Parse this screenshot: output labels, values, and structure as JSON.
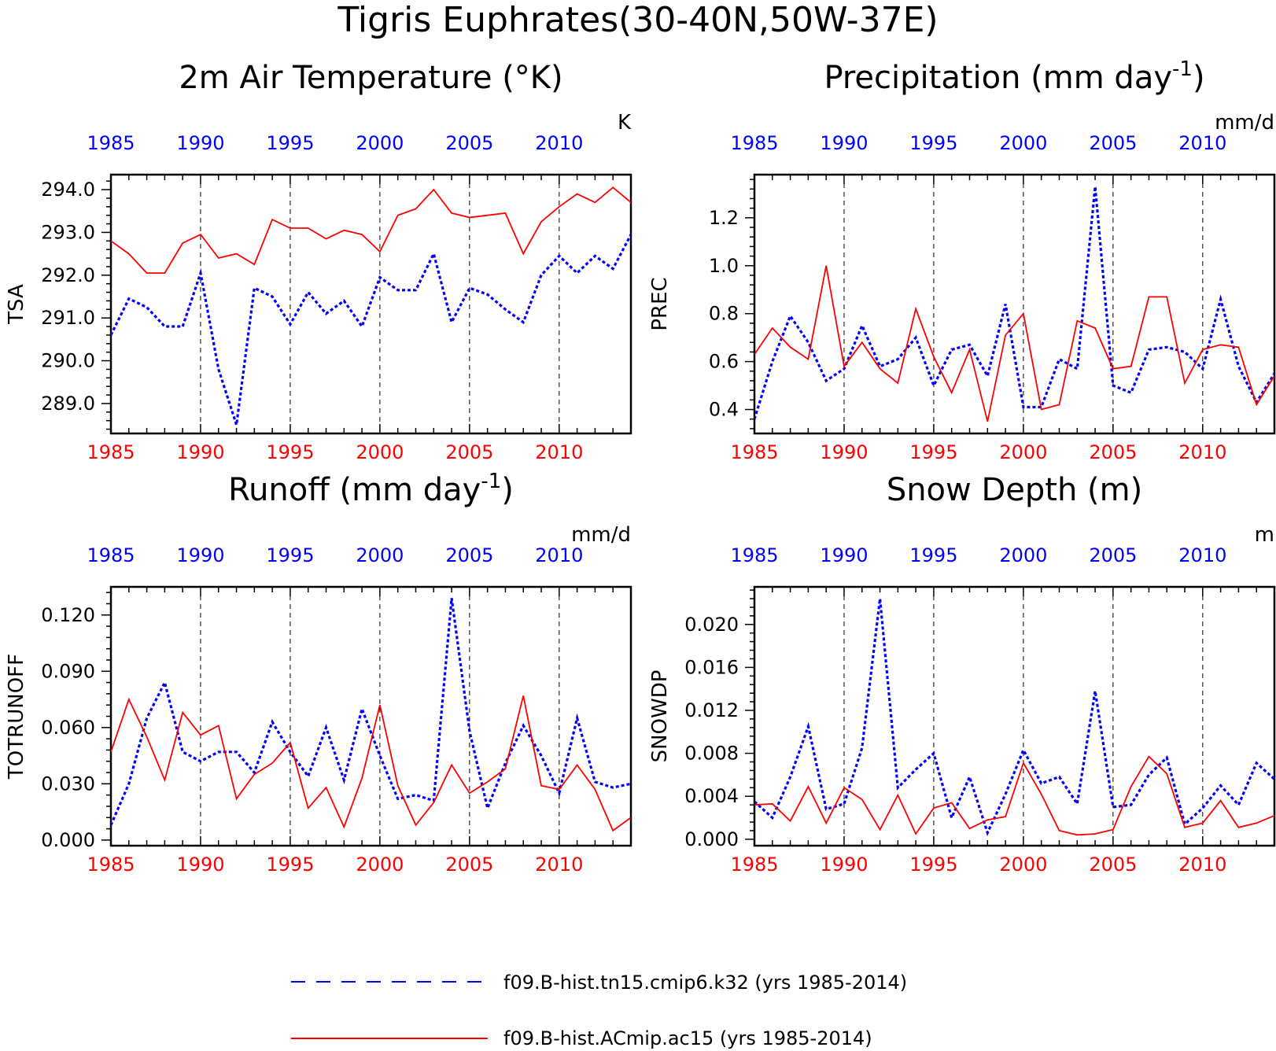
{
  "figure": {
    "title": "Tigris Euphrates(30-40N,50W-37E)",
    "colors": {
      "run1": "#0000ff",
      "run2": "#ff0000",
      "axis": "#000000"
    },
    "legend": [
      {
        "label": "f09.B-hist.tn15.cmip6.k32 (yrs 1985-2014)",
        "color": "#0000ff",
        "style": "dashed"
      },
      {
        "label": "f09.B-hist.ACmip.ac15 (yrs 1985-2014)",
        "color": "#ff0000",
        "style": "solid"
      }
    ]
  },
  "chart_data": [
    {
      "type": "line",
      "title": "2m Air Temperature (°K)",
      "units": "K",
      "ylabel": "TSA",
      "x": [
        1985,
        1986,
        1987,
        1988,
        1989,
        1990,
        1991,
        1992,
        1993,
        1994,
        1995,
        1996,
        1997,
        1998,
        1999,
        2000,
        2001,
        2002,
        2003,
        2004,
        2005,
        2006,
        2007,
        2008,
        2009,
        2010,
        2011,
        2012,
        2013,
        2014
      ],
      "xlim": [
        1985,
        2014
      ],
      "ylim": [
        288.3,
        294.35
      ],
      "yticks": [
        289.0,
        290.0,
        291.0,
        292.0,
        293.0,
        294.0
      ],
      "ytick_labels": [
        "289.0",
        "290.0",
        "291.0",
        "292.0",
        "293.0",
        "294.0"
      ],
      "xticks": [
        1985,
        1990,
        1995,
        2000,
        2005,
        2010
      ],
      "series": [
        {
          "name": "f09.B-hist.tn15.cmip6.k32 (yrs 1985-2014)",
          "style": "dashed",
          "color": "#0000ff",
          "values": [
            290.6,
            291.45,
            291.25,
            290.8,
            290.8,
            292.05,
            289.8,
            288.5,
            291.7,
            291.5,
            290.85,
            291.6,
            291.1,
            291.4,
            290.8,
            291.95,
            291.65,
            291.65,
            292.5,
            290.9,
            291.7,
            291.55,
            291.2,
            290.9,
            292.0,
            292.45,
            292.05,
            292.45,
            292.15,
            292.95
          ]
        },
        {
          "name": "f09.B-hist.ACmip.ac15 (yrs 1985-2014)",
          "style": "solid",
          "color": "#ff0000",
          "values": [
            292.8,
            292.5,
            292.05,
            292.05,
            292.75,
            292.95,
            292.4,
            292.5,
            292.25,
            293.3,
            293.1,
            293.1,
            292.85,
            293.05,
            292.95,
            292.55,
            293.4,
            293.55,
            294.0,
            293.45,
            293.35,
            293.4,
            293.45,
            292.5,
            293.25,
            293.6,
            293.9,
            293.7,
            294.05,
            293.7
          ]
        }
      ]
    },
    {
      "type": "line",
      "title": "Precipitation (mm day",
      "title_sup": "-1",
      "title_end": ")",
      "units": "mm/d",
      "ylabel": "PREC",
      "x": [
        1985,
        1986,
        1987,
        1988,
        1989,
        1990,
        1991,
        1992,
        1993,
        1994,
        1995,
        1996,
        1997,
        1998,
        1999,
        2000,
        2001,
        2002,
        2003,
        2004,
        2005,
        2006,
        2007,
        2008,
        2009,
        2010,
        2011,
        2012,
        2013,
        2014
      ],
      "xlim": [
        1985,
        2014
      ],
      "ylim": [
        0.3,
        1.38
      ],
      "yticks": [
        0.4,
        0.6,
        0.8,
        1.0,
        1.2
      ],
      "ytick_labels": [
        "0.4",
        "0.6",
        "0.8",
        "1.0",
        "1.2"
      ],
      "xticks": [
        1985,
        1990,
        1995,
        2000,
        2005,
        2010
      ],
      "series": [
        {
          "name": "f09.B-hist.tn15.cmip6.k32 (yrs 1985-2014)",
          "style": "dashed",
          "color": "#0000ff",
          "values": [
            0.36,
            0.6,
            0.79,
            0.68,
            0.52,
            0.57,
            0.75,
            0.58,
            0.61,
            0.7,
            0.5,
            0.65,
            0.67,
            0.54,
            0.84,
            0.41,
            0.41,
            0.61,
            0.57,
            1.33,
            0.5,
            0.47,
            0.65,
            0.66,
            0.64,
            0.57,
            0.86,
            0.58,
            0.43,
            0.55
          ]
        },
        {
          "name": "f09.B-hist.ACmip.ac15 (yrs 1985-2014)",
          "style": "solid",
          "color": "#ff0000",
          "values": [
            0.63,
            0.74,
            0.66,
            0.61,
            1.0,
            0.58,
            0.68,
            0.57,
            0.51,
            0.82,
            0.62,
            0.47,
            0.65,
            0.35,
            0.71,
            0.8,
            0.4,
            0.42,
            0.77,
            0.74,
            0.57,
            0.58,
            0.87,
            0.87,
            0.51,
            0.65,
            0.67,
            0.66,
            0.42,
            0.54
          ]
        }
      ]
    },
    {
      "type": "line",
      "title": "Runoff (mm day",
      "title_sup": "-1",
      "title_end": ")",
      "units": "mm/d",
      "ylabel": "TOTRUNOFF",
      "x": [
        1985,
        1986,
        1987,
        1988,
        1989,
        1990,
        1991,
        1992,
        1993,
        1994,
        1995,
        1996,
        1997,
        1998,
        1999,
        2000,
        2001,
        2002,
        2003,
        2004,
        2005,
        2006,
        2007,
        2008,
        2009,
        2010,
        2011,
        2012,
        2013,
        2014
      ],
      "xlim": [
        1985,
        2014
      ],
      "ylim": [
        -0.003,
        0.135
      ],
      "yticks": [
        0.0,
        0.03,
        0.06,
        0.09,
        0.12
      ],
      "ytick_labels": [
        "0.000",
        "0.030",
        "0.060",
        "0.090",
        "0.120"
      ],
      "xticks": [
        1985,
        1990,
        1995,
        2000,
        2005,
        2010
      ],
      "series": [
        {
          "name": "f09.B-hist.tn15.cmip6.k32 (yrs 1985-2014)",
          "style": "dashed",
          "color": "#0000ff",
          "values": [
            0.008,
            0.03,
            0.065,
            0.084,
            0.047,
            0.042,
            0.047,
            0.047,
            0.036,
            0.063,
            0.047,
            0.034,
            0.06,
            0.032,
            0.07,
            0.045,
            0.022,
            0.024,
            0.021,
            0.129,
            0.058,
            0.017,
            0.041,
            0.061,
            0.045,
            0.025,
            0.065,
            0.031,
            0.028,
            0.03
          ]
        },
        {
          "name": "f09.B-hist.ACmip.ac15 (yrs 1985-2014)",
          "style": "solid",
          "color": "#ff0000",
          "values": [
            0.047,
            0.075,
            0.055,
            0.032,
            0.068,
            0.056,
            0.061,
            0.022,
            0.035,
            0.041,
            0.052,
            0.017,
            0.028,
            0.007,
            0.033,
            0.072,
            0.029,
            0.008,
            0.02,
            0.04,
            0.025,
            0.031,
            0.038,
            0.077,
            0.029,
            0.027,
            0.04,
            0.027,
            0.005,
            0.012
          ]
        }
      ]
    },
    {
      "type": "line",
      "title": "Snow Depth (m)",
      "units": "m",
      "ylabel": "SNOWDP",
      "x": [
        1985,
        1986,
        1987,
        1988,
        1989,
        1990,
        1991,
        1992,
        1993,
        1994,
        1995,
        1996,
        1997,
        1998,
        1999,
        2000,
        2001,
        2002,
        2003,
        2004,
        2005,
        2006,
        2007,
        2008,
        2009,
        2010,
        2011,
        2012,
        2013,
        2014
      ],
      "xlim": [
        1985,
        2014
      ],
      "ylim": [
        -0.0006,
        0.0235
      ],
      "yticks": [
        0.0,
        0.004,
        0.008,
        0.012,
        0.016,
        0.02
      ],
      "ytick_labels": [
        "0.000",
        "0.004",
        "0.008",
        "0.012",
        "0.016",
        "0.020"
      ],
      "xticks": [
        1985,
        1990,
        1995,
        2000,
        2005,
        2010
      ],
      "series": [
        {
          "name": "f09.B-hist.tn15.cmip6.k32 (yrs 1985-2014)",
          "style": "dashed",
          "color": "#0000ff",
          "values": [
            0.0035,
            0.002,
            0.0058,
            0.0105,
            0.0028,
            0.0033,
            0.0085,
            0.0224,
            0.0048,
            0.0065,
            0.008,
            0.002,
            0.0058,
            0.0006,
            0.0042,
            0.0083,
            0.0052,
            0.0058,
            0.0033,
            0.0138,
            0.003,
            0.0032,
            0.006,
            0.0076,
            0.0014,
            0.0029,
            0.005,
            0.0032,
            0.0071,
            0.0056
          ]
        },
        {
          "name": "f09.B-hist.ACmip.ac15 (yrs 1985-2014)",
          "style": "solid",
          "color": "#ff0000",
          "values": [
            0.0032,
            0.0033,
            0.0017,
            0.0049,
            0.0015,
            0.0048,
            0.0037,
            0.0009,
            0.0041,
            0.0005,
            0.0029,
            0.0034,
            0.001,
            0.0018,
            0.0021,
            0.0071,
            0.0042,
            0.0008,
            0.0004,
            0.0005,
            0.0009,
            0.0049,
            0.0077,
            0.0061,
            0.0011,
            0.0015,
            0.0036,
            0.0011,
            0.0015,
            0.0022
          ]
        }
      ]
    }
  ]
}
